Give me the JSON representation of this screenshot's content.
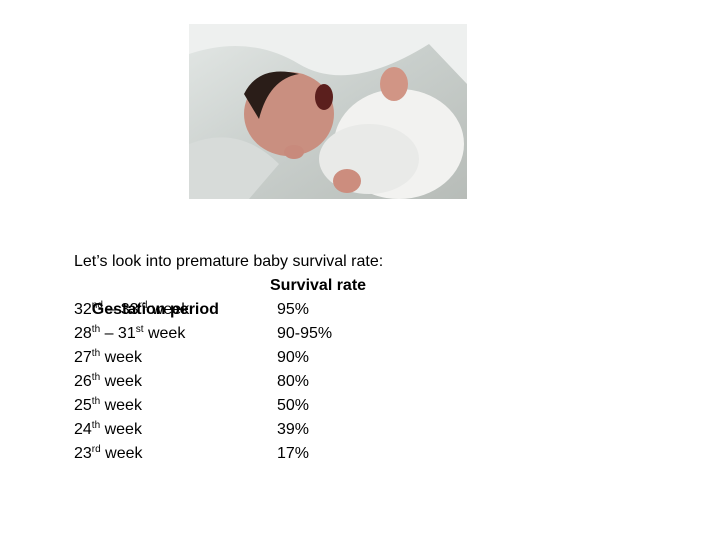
{
  "intro": "Let’s look into premature baby survival rate:",
  "table": {
    "headers": [
      "Gestation period",
      "Survival rate"
    ],
    "rows": [
      {
        "gestation": [
          {
            "text": "32"
          },
          {
            "sup": "nd"
          },
          {
            "text": " – 33"
          },
          {
            "sup": "rd"
          },
          {
            "text": " week"
          }
        ],
        "rate": "95%"
      },
      {
        "gestation": [
          {
            "text": "28"
          },
          {
            "sup": "th"
          },
          {
            "text": " – 31"
          },
          {
            "sup": "st"
          },
          {
            "text": " week"
          }
        ],
        "rate": "90-95%"
      },
      {
        "gestation": [
          {
            "text": "27"
          },
          {
            "sup": "th"
          },
          {
            "text": " week"
          }
        ],
        "rate": "90%"
      },
      {
        "gestation": [
          {
            "text": "26"
          },
          {
            "sup": "th"
          },
          {
            "text": " week"
          }
        ],
        "rate": "80%"
      },
      {
        "gestation": [
          {
            "text": "25"
          },
          {
            "sup": "th"
          },
          {
            "text": " week"
          }
        ],
        "rate": "50%"
      },
      {
        "gestation": [
          {
            "text": "24"
          },
          {
            "sup": "th"
          },
          {
            "text": " week"
          }
        ],
        "rate": "39%"
      },
      {
        "gestation": [
          {
            "text": "23"
          },
          {
            "sup": "rd"
          },
          {
            "text": " week"
          }
        ],
        "rate": "17%"
      }
    ]
  }
}
